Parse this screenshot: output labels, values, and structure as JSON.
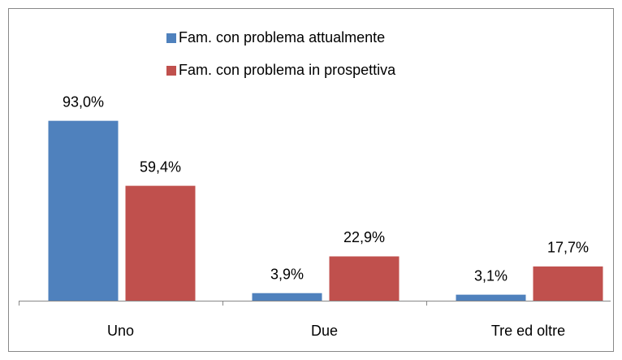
{
  "chart_data": {
    "type": "bar",
    "categories": [
      "Uno",
      "Due",
      "Tre ed oltre"
    ],
    "series": [
      {
        "name": "Fam. con problema attualmente",
        "color": "#4f81bd",
        "values": [
          93.0,
          3.9,
          3.1
        ],
        "value_labels": [
          "93,0%",
          "3,9%",
          "3,1%"
        ]
      },
      {
        "name": "Fam. con problema in prospettiva",
        "color": "#c0504d",
        "values": [
          59.4,
          22.9,
          17.7
        ],
        "value_labels": [
          "59,4%",
          "22,9%",
          "17,7%"
        ]
      }
    ],
    "ylim": [
      0,
      100
    ],
    "legend": "top"
  }
}
